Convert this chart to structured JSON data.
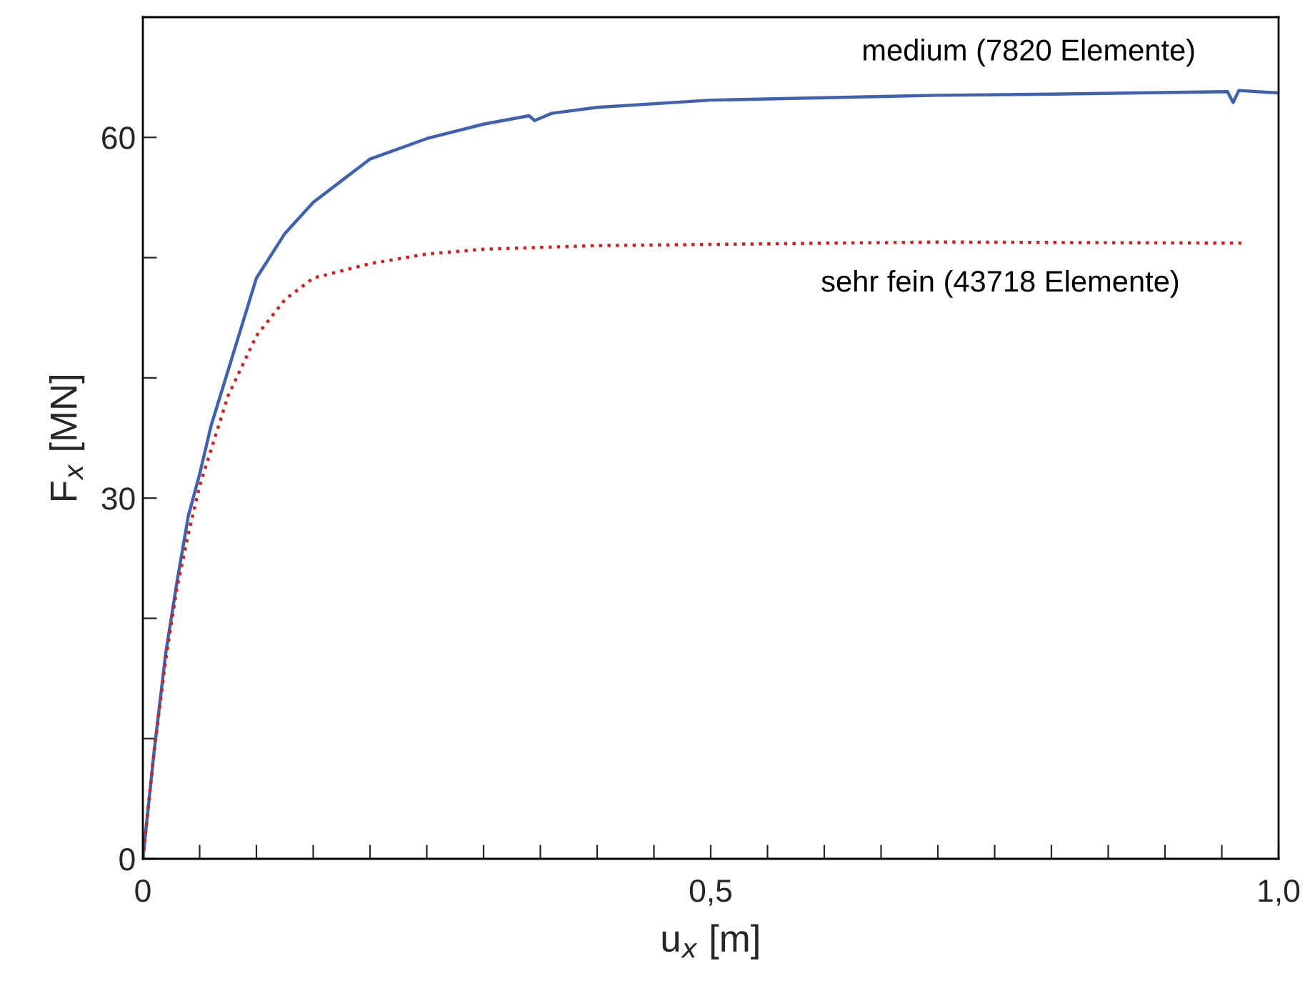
{
  "chart_data": {
    "type": "line",
    "xlabel": "u$_{x}$ [m]",
    "ylabel": "F$_{x}$ [MN]",
    "xlim": [
      0,
      1.0
    ],
    "ylim": [
      0,
      70
    ],
    "xticks": [
      0,
      {
        "value": 0.05,
        "label": null
      },
      {
        "value": 0.1,
        "label": null
      },
      {
        "value": 0.15,
        "label": null
      },
      {
        "value": 0.2,
        "label": null
      },
      {
        "value": 0.25,
        "label": null
      },
      {
        "value": 0.3,
        "label": null
      },
      {
        "value": 0.35,
        "label": null
      },
      {
        "value": 0.4,
        "label": null
      },
      {
        "value": 0.45,
        "label": null
      },
      {
        "value": 0.5,
        "label": "0,5"
      },
      {
        "value": 0.55,
        "label": null
      },
      {
        "value": 0.6,
        "label": null
      },
      {
        "value": 0.65,
        "label": null
      },
      {
        "value": 0.7,
        "label": null
      },
      {
        "value": 0.75,
        "label": null
      },
      {
        "value": 0.8,
        "label": null
      },
      {
        "value": 0.85,
        "label": null
      },
      {
        "value": 0.9,
        "label": null
      },
      {
        "value": 0.95,
        "label": null
      },
      {
        "value": 1.0,
        "label": "1,0"
      }
    ],
    "yticks": [
      0,
      {
        "value": 10,
        "label": null
      },
      {
        "value": 20,
        "label": null
      },
      30,
      {
        "value": 40,
        "label": null
      },
      {
        "value": 50,
        "label": null
      },
      60
    ],
    "grid": false,
    "legend": false,
    "series": [
      {
        "name": "medium (7820 Elemente)",
        "color": "#4060b0",
        "line_style": "solid",
        "x": [
          0,
          0.01,
          0.02,
          0.03,
          0.04,
          0.05,
          0.06,
          0.075,
          0.1,
          0.125,
          0.15,
          0.175,
          0.2,
          0.25,
          0.3,
          0.34,
          0.345,
          0.36,
          0.4,
          0.5,
          0.6,
          0.7,
          0.8,
          0.955,
          0.96,
          0.965,
          1.0
        ],
        "values": [
          0,
          9,
          17,
          23,
          28.5,
          32,
          36,
          40.6,
          48.3,
          52,
          54.6,
          56.4,
          58.2,
          59.9,
          61.1,
          61.8,
          61.4,
          62,
          62.5,
          63.1,
          63.3,
          63.5,
          63.6,
          63.8,
          62.9,
          63.9,
          63.7
        ]
      },
      {
        "name": "sehr fein (43718 Elemente)",
        "color": "#d02020",
        "line_style": "dotted",
        "x": [
          0,
          0.01,
          0.02,
          0.03,
          0.04,
          0.05,
          0.06,
          0.075,
          0.1,
          0.125,
          0.15,
          0.2,
          0.25,
          0.3,
          0.4,
          0.5,
          0.7,
          0.97
        ],
        "values": [
          0,
          9,
          16.5,
          22.5,
          27,
          31,
          34,
          38.5,
          43.5,
          46.5,
          48.3,
          49.5,
          50.3,
          50.7,
          51,
          51.1,
          51.3,
          51.2
        ]
      }
    ]
  }
}
